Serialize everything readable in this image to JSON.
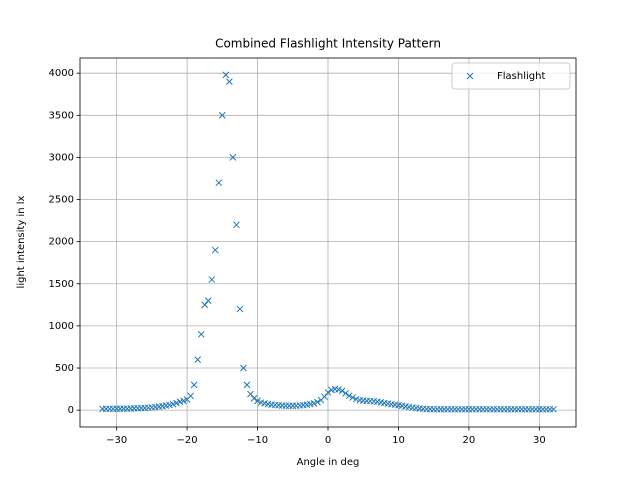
{
  "chart_data": {
    "type": "scatter",
    "title": "Combined Flashlight Intensity Pattern",
    "x_label": "Angle in deg",
    "y_label": "light intensity in lx",
    "marker": "x",
    "grid": true,
    "legend": "upper right",
    "x": [
      -32,
      -31.5,
      -31,
      -30.5,
      -30,
      -29.5,
      -29,
      -28.5,
      -28,
      -27.5,
      -27,
      -26.5,
      -26,
      -25.5,
      -25,
      -24.5,
      -24,
      -23.5,
      -23,
      -22.5,
      -22,
      -21.5,
      -21,
      -20.5,
      -20,
      -19.5,
      -19,
      -18.5,
      -18,
      -17.5,
      -17,
      -16.5,
      -16,
      -15.5,
      -15,
      -14.5,
      -14,
      -13.5,
      -13,
      -12.5,
      -12,
      -11.5,
      -11,
      -10.5,
      -10,
      -9.5,
      -9,
      -8.5,
      -8,
      -7.5,
      -7,
      -6.5,
      -6,
      -5.5,
      -5,
      -4.5,
      -4,
      -3.5,
      -3,
      -2.5,
      -2,
      -1.5,
      -1,
      -0.5,
      0,
      0.5,
      1,
      1.5,
      2,
      2.5,
      3,
      3.5,
      4,
      4.5,
      5,
      5.5,
      6,
      6.5,
      7,
      7.5,
      8,
      8.5,
      9,
      9.5,
      10,
      10.5,
      11,
      11.5,
      12,
      12.5,
      13,
      13.5,
      14,
      14.5,
      15,
      15.5,
      16,
      16.5,
      17,
      17.5,
      18,
      18.5,
      19,
      19.5,
      20,
      20.5,
      21,
      21.5,
      22,
      22.5,
      23,
      23.5,
      24,
      24.5,
      25,
      25.5,
      26,
      26.5,
      27,
      27.5,
      28,
      28.5,
      29,
      29.5,
      30,
      30.5,
      31,
      31.5,
      32
    ],
    "series": [
      {
        "name": "Flashlight",
        "color": "#1f77b4",
        "values": [
          15,
          15,
          16,
          16,
          17,
          17,
          18,
          18,
          20,
          21,
          22,
          24,
          26,
          28,
          32,
          36,
          42,
          48,
          55,
          62,
          72,
          85,
          100,
          110,
          125,
          170,
          300,
          600,
          900,
          1250,
          1300,
          1550,
          1900,
          2700,
          3500,
          3980,
          3900,
          3000,
          2200,
          1200,
          500,
          300,
          190,
          140,
          110,
          90,
          80,
          72,
          66,
          62,
          58,
          55,
          53,
          52,
          52,
          53,
          56,
          60,
          66,
          72,
          80,
          95,
          120,
          160,
          210,
          240,
          250,
          245,
          230,
          200,
          170,
          150,
          130,
          120,
          115,
          110,
          108,
          105,
          100,
          92,
          85,
          78,
          70,
          64,
          58,
          52,
          45,
          38,
          30,
          25,
          20,
          16,
          13,
          12,
          10,
          10,
          10,
          10,
          10,
          10,
          10,
          10,
          10,
          10,
          10,
          10,
          10,
          10,
          10,
          10,
          10,
          10,
          10,
          10,
          10,
          10,
          10,
          10,
          10,
          10,
          10,
          10,
          10,
          10,
          10,
          10,
          10,
          10,
          10
        ]
      }
    ],
    "xlim": [
      -35.2,
      35.2
    ],
    "ylim": [
      -200,
      4180
    ],
    "xticks": [
      {
        "value": -30,
        "label": "−30"
      },
      {
        "value": -20,
        "label": "−20"
      },
      {
        "value": -10,
        "label": "−10"
      },
      0,
      10,
      20,
      30
    ],
    "yticks": [
      0,
      500,
      1000,
      1500,
      2000,
      2500,
      3000,
      3500,
      4000
    ]
  }
}
